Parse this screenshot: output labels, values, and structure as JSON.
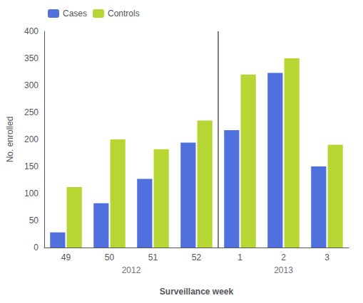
{
  "chart_data": {
    "type": "bar",
    "categories": [
      "49",
      "50",
      "51",
      "52",
      "1",
      "2",
      "3"
    ],
    "series": [
      {
        "name": "Cases",
        "values": [
          28,
          82,
          127,
          194,
          217,
          323,
          150
        ]
      },
      {
        "name": "Controls",
        "values": [
          112,
          200,
          182,
          235,
          320,
          350,
          190
        ]
      }
    ],
    "ylabel": "No. enrolled",
    "xlabel": "Surveillance week",
    "ylim": [
      0,
      400
    ],
    "yticks": [
      0,
      50,
      100,
      150,
      200,
      250,
      300,
      350,
      400
    ],
    "annotations": [
      {
        "text": "2012",
        "categories": [
          "49",
          "52"
        ]
      },
      {
        "text": "2013",
        "categories": [
          "1",
          "3"
        ]
      }
    ],
    "legend": "upper left",
    "grid": false
  }
}
